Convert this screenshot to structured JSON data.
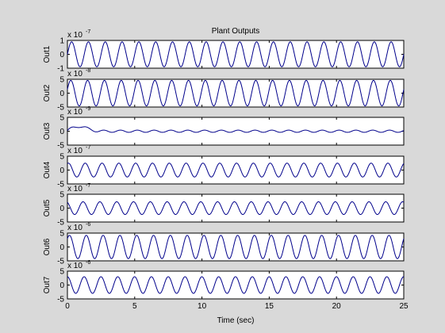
{
  "chart_data": {
    "type": "line",
    "title": "Plant Outputs",
    "xlabel": "Time (sec)",
    "xlim": [
      0,
      25
    ],
    "xticks": [
      "0",
      "5",
      "10",
      "15",
      "20",
      "25"
    ],
    "background": "#d9d9d9",
    "axes_color": "#ffffff",
    "line_color": "#00008b",
    "subplots": [
      {
        "ylabel": "Out1",
        "exponent_base": "x 10",
        "exponent": "-7",
        "ylim": [
          -1,
          1
        ],
        "yticks": [
          "1",
          "0",
          "-1"
        ],
        "amplitude": 0.9,
        "cycles": 20,
        "phase": 0,
        "transient": 0
      },
      {
        "ylabel": "Out2",
        "exponent_base": "x 10",
        "exponent": "-8",
        "ylim": [
          -5,
          5
        ],
        "yticks": [
          "5",
          "0",
          "-5"
        ],
        "amplitude": 4.6,
        "cycles": 20,
        "phase": 0.3,
        "transient": 0
      },
      {
        "ylabel": "Out3",
        "exponent_base": "x 10",
        "exponent": "-9",
        "ylim": [
          -5,
          5
        ],
        "yticks": [
          "5",
          "0",
          "-5"
        ],
        "amplitude": 0.4,
        "cycles": 20,
        "phase": 0.6,
        "transient": 2.5
      },
      {
        "ylabel": "Out4",
        "exponent_base": "x 10",
        "exponent": "-7",
        "ylim": [
          -5,
          5
        ],
        "yticks": [
          "5",
          "0",
          "-5"
        ],
        "amplitude": 2.5,
        "cycles": 20,
        "phase": 1.2,
        "transient": 0
      },
      {
        "ylabel": "Out5",
        "exponent_base": "x 10",
        "exponent": "-7",
        "ylim": [
          -5,
          5
        ],
        "yticks": [
          "5",
          "0",
          "-5"
        ],
        "amplitude": 2.3,
        "cycles": 20,
        "phase": 2.0,
        "transient": 0
      },
      {
        "ylabel": "Out6",
        "exponent_base": "x 10",
        "exponent": "-6",
        "ylim": [
          -5,
          5
        ],
        "yticks": [
          "5",
          "0",
          "-5"
        ],
        "amplitude": 4.2,
        "cycles": 20,
        "phase": 0.8,
        "transient": 0
      },
      {
        "ylabel": "Out7",
        "exponent_base": "x 10",
        "exponent": "-6",
        "ylim": [
          -5,
          5
        ],
        "yticks": [
          "5",
          "0",
          "-5"
        ],
        "amplitude": 3.0,
        "cycles": 20,
        "phase": 1.6,
        "transient": 0
      }
    ]
  }
}
